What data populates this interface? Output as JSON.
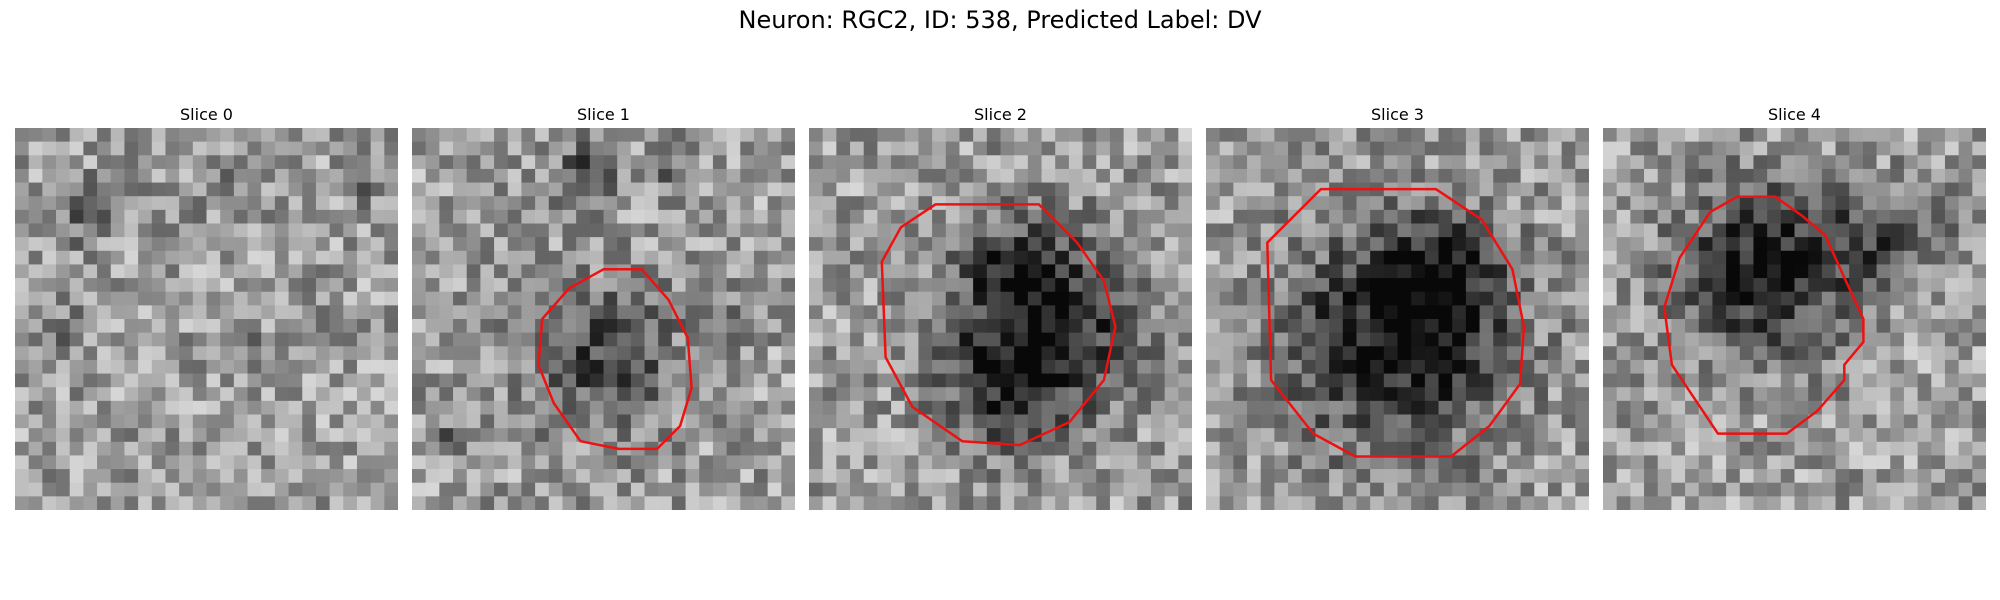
{
  "title": "Neuron: RGC2, ID: 538, Predicted Label: DV",
  "contour_color": "#ee1111",
  "panels": [
    {
      "label": "Slice 0",
      "seed": 11,
      "blobs": [
        [
          0.18,
          0.22,
          0.08,
          0.25
        ],
        [
          0.55,
          0.15,
          0.07,
          0.18
        ],
        [
          0.12,
          0.55,
          0.07,
          0.18
        ],
        [
          0.6,
          0.55,
          0.05,
          0.15
        ],
        [
          0.92,
          0.15,
          0.05,
          0.2
        ]
      ],
      "contour": []
    },
    {
      "label": "Slice 1",
      "seed": 23,
      "blobs": [
        [
          0.5,
          0.6,
          0.18,
          0.35
        ],
        [
          0.45,
          0.12,
          0.08,
          0.3
        ],
        [
          0.68,
          0.1,
          0.06,
          0.2
        ],
        [
          0.85,
          0.5,
          0.06,
          0.2
        ],
        [
          0.1,
          0.82,
          0.05,
          0.2
        ]
      ],
      "contour": [
        [
          0.5,
          0.37
        ],
        [
          0.6,
          0.37
        ],
        [
          0.67,
          0.45
        ],
        [
          0.72,
          0.55
        ],
        [
          0.73,
          0.68
        ],
        [
          0.7,
          0.78
        ],
        [
          0.64,
          0.84
        ],
        [
          0.54,
          0.84
        ],
        [
          0.44,
          0.82
        ],
        [
          0.37,
          0.72
        ],
        [
          0.33,
          0.62
        ],
        [
          0.34,
          0.5
        ],
        [
          0.41,
          0.42
        ]
      ]
    },
    {
      "label": "Slice 2",
      "seed": 37,
      "blobs": [
        [
          0.62,
          0.5,
          0.22,
          0.55
        ],
        [
          0.5,
          0.7,
          0.15,
          0.3
        ],
        [
          0.5,
          0.35,
          0.1,
          0.2
        ]
      ],
      "contour": [
        [
          0.33,
          0.2
        ],
        [
          0.6,
          0.2
        ],
        [
          0.7,
          0.3
        ],
        [
          0.77,
          0.4
        ],
        [
          0.8,
          0.52
        ],
        [
          0.77,
          0.66
        ],
        [
          0.68,
          0.77
        ],
        [
          0.55,
          0.83
        ],
        [
          0.4,
          0.82
        ],
        [
          0.27,
          0.73
        ],
        [
          0.2,
          0.6
        ],
        [
          0.19,
          0.35
        ],
        [
          0.24,
          0.26
        ]
      ]
    },
    {
      "label": "Slice 3",
      "seed": 53,
      "blobs": [
        [
          0.5,
          0.55,
          0.27,
          0.55
        ],
        [
          0.62,
          0.4,
          0.15,
          0.3
        ]
      ],
      "contour": [
        [
          0.3,
          0.16
        ],
        [
          0.6,
          0.16
        ],
        [
          0.72,
          0.24
        ],
        [
          0.8,
          0.37
        ],
        [
          0.83,
          0.52
        ],
        [
          0.82,
          0.67
        ],
        [
          0.74,
          0.78
        ],
        [
          0.64,
          0.86
        ],
        [
          0.39,
          0.86
        ],
        [
          0.28,
          0.8
        ],
        [
          0.17,
          0.66
        ],
        [
          0.16,
          0.3
        ]
      ]
    },
    {
      "label": "Slice 4",
      "seed": 71,
      "blobs": [
        [
          0.42,
          0.38,
          0.2,
          0.55
        ],
        [
          0.7,
          0.3,
          0.12,
          0.3
        ],
        [
          0.85,
          0.2,
          0.08,
          0.2
        ]
      ],
      "contour": [
        [
          0.35,
          0.18
        ],
        [
          0.45,
          0.18
        ],
        [
          0.52,
          0.23
        ],
        [
          0.58,
          0.28
        ],
        [
          0.62,
          0.37
        ],
        [
          0.68,
          0.5
        ],
        [
          0.68,
          0.56
        ],
        [
          0.63,
          0.62
        ],
        [
          0.63,
          0.66
        ],
        [
          0.56,
          0.74
        ],
        [
          0.48,
          0.8
        ],
        [
          0.3,
          0.8
        ],
        [
          0.18,
          0.62
        ],
        [
          0.16,
          0.47
        ],
        [
          0.2,
          0.34
        ],
        [
          0.28,
          0.22
        ]
      ]
    }
  ]
}
